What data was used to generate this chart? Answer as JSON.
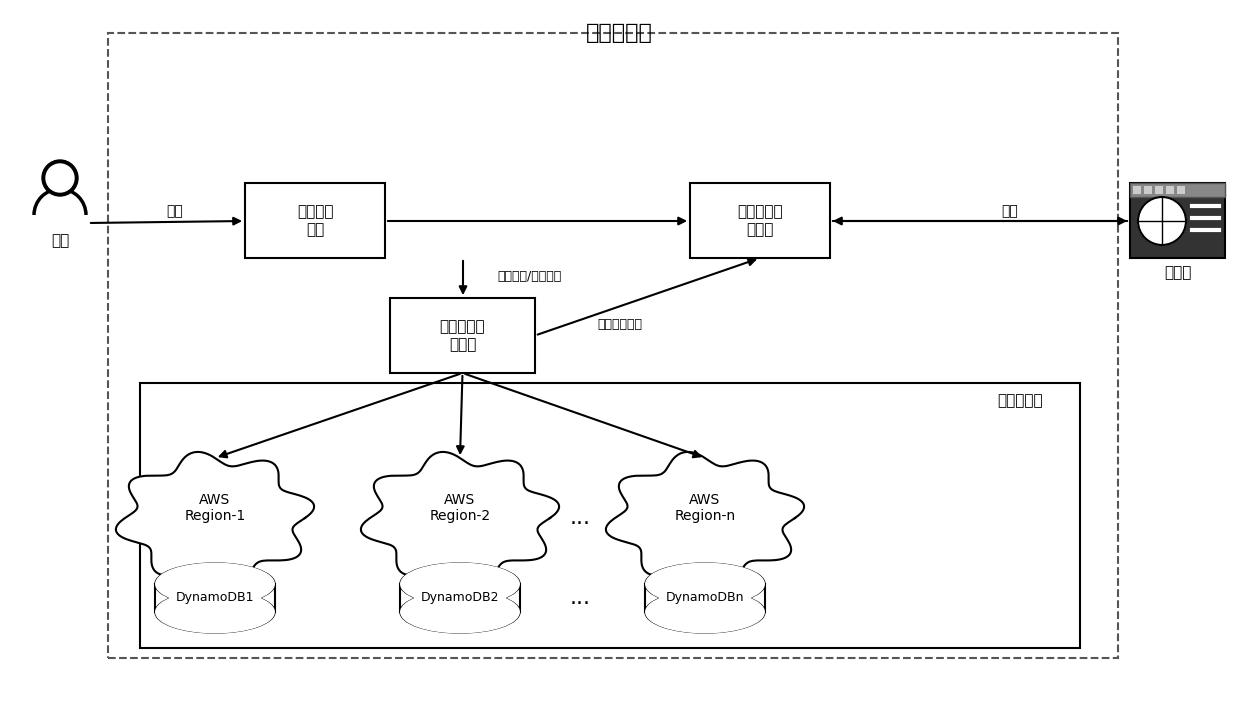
{
  "title": "密码管理器",
  "background_color": "#ffffff",
  "fig_width": 12.39,
  "fig_height": 7.13,
  "user_label": "用户",
  "browser_label": "浏览器",
  "auth_module_label": "用户认证\n模块",
  "browser_interact_label": "与浏览器交\n互模块",
  "data_storage_label": "数据存储检\n索模块",
  "server_module_label": "服务器模块",
  "login_label": "登录",
  "interact_label": "交互",
  "store_retrieve_label": "存储数据/请求检索",
  "return_result_label": "返回检索结果",
  "aws_regions": [
    "AWS\nRegion-1",
    "AWS\nRegion-2",
    "AWS\nRegion-n"
  ],
  "dynamo_dbs": [
    "DynamoDB1",
    "DynamoDB2",
    "DynamoDBn"
  ],
  "ellipsis": "..."
}
